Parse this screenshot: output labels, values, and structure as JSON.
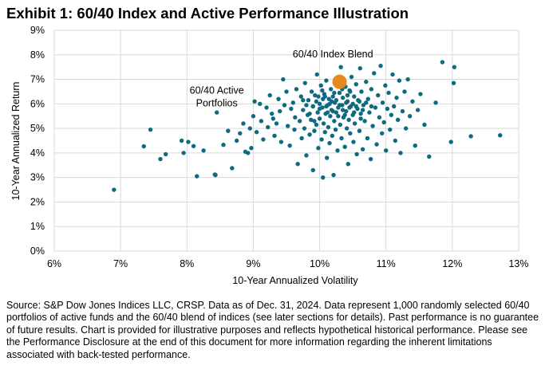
{
  "title": "Exhibit 1: 60/40 Index and Active Performance Illustration",
  "source_note": "Source: S&P Dow Jones Indices LLC, CRSP.  Data as of Dec. 31, 2024.  Data represent 1,000 randomly selected 60/40 portfolios of active funds and the 60/40 blend of indices (see later sections for details).  Past performance is no guarantee of future results.  Chart is provided for illustrative purposes and reflects hypothetical historical performance.  Please see the Performance Disclosure at the end of this document for more information regarding the inherent limitations associated with back-tested performance.",
  "colors": {
    "active": "#0e6a80",
    "index": "#e8891b",
    "grid": "#d9d9d9"
  },
  "chart_data": {
    "type": "scatter",
    "xlabel": "10-Year Annualized Volatility",
    "ylabel": "10-Year Annualized Return",
    "xlim": [
      6,
      13
    ],
    "ylim": [
      0,
      9
    ],
    "x_ticks": [
      "6%",
      "7%",
      "8%",
      "9%",
      "10%",
      "11%",
      "12%",
      "13%"
    ],
    "y_ticks": [
      "0%",
      "1%",
      "2%",
      "3%",
      "4%",
      "5%",
      "6%",
      "7%",
      "8%",
      "9%"
    ],
    "grid": true,
    "annotations": [
      {
        "text_lines": [
          "60/40 Index Blend"
        ],
        "x": 10.2,
        "y": 7.9
      },
      {
        "text_lines": [
          "60/40 Active",
          "Portfolios"
        ],
        "x": 8.45,
        "y": 6.15
      }
    ],
    "series": [
      {
        "color": "#0e6a80",
        "points": [
          [
            6.9,
            2.5
          ],
          [
            7.35,
            4.27
          ],
          [
            7.45,
            4.95
          ],
          [
            7.6,
            3.75
          ],
          [
            7.68,
            3.95
          ],
          [
            7.92,
            4.5
          ],
          [
            7.95,
            4.0
          ],
          [
            8.02,
            4.45
          ],
          [
            8.1,
            4.28
          ],
          [
            8.15,
            3.05
          ],
          [
            8.25,
            4.1
          ],
          [
            8.42,
            3.12
          ],
          [
            8.43,
            3.1
          ],
          [
            8.45,
            5.65
          ],
          [
            8.55,
            4.33
          ],
          [
            8.62,
            4.9
          ],
          [
            8.68,
            3.38
          ],
          [
            8.75,
            4.5
          ],
          [
            8.8,
            4.8
          ],
          [
            8.85,
            5.2
          ],
          [
            8.88,
            4.05
          ],
          [
            8.92,
            4.0
          ],
          [
            8.95,
            5.0
          ],
          [
            8.97,
            4.2
          ],
          [
            9.0,
            5.5
          ],
          [
            9.02,
            6.1
          ],
          [
            9.05,
            4.85
          ],
          [
            9.1,
            6.0
          ],
          [
            9.12,
            5.3
          ],
          [
            9.15,
            4.55
          ],
          [
            9.2,
            5.85
          ],
          [
            9.22,
            5.05
          ],
          [
            9.25,
            6.35
          ],
          [
            9.28,
            5.6
          ],
          [
            9.3,
            5.4
          ],
          [
            9.32,
            4.7
          ],
          [
            9.35,
            5.2
          ],
          [
            9.38,
            6.2
          ],
          [
            9.4,
            5.7
          ],
          [
            9.42,
            4.45
          ],
          [
            9.45,
            7.0
          ],
          [
            9.47,
            5.95
          ],
          [
            9.5,
            6.5
          ],
          [
            9.52,
            5.1
          ],
          [
            9.55,
            4.3
          ],
          [
            9.57,
            5.8
          ],
          [
            9.6,
            6.05
          ],
          [
            9.62,
            4.95
          ],
          [
            9.63,
            5.45
          ],
          [
            9.65,
            6.6
          ],
          [
            9.67,
            3.55
          ],
          [
            9.7,
            5.3
          ],
          [
            9.72,
            6.3
          ],
          [
            9.73,
            4.6
          ],
          [
            9.75,
            5.75
          ],
          [
            9.77,
            5.0
          ],
          [
            9.78,
            6.85
          ],
          [
            9.8,
            3.9
          ],
          [
            9.82,
            5.55
          ],
          [
            9.83,
            6.15
          ],
          [
            9.85,
            4.75
          ],
          [
            9.87,
            5.35
          ],
          [
            9.88,
            6.5
          ],
          [
            9.9,
            3.3
          ],
          [
            9.9,
            5.9
          ],
          [
            9.92,
            4.9
          ],
          [
            9.93,
            6.35
          ],
          [
            9.95,
            5.15
          ],
          [
            9.96,
            7.2
          ],
          [
            9.97,
            5.65
          ],
          [
            9.98,
            4.2
          ],
          [
            10.0,
            6.0
          ],
          [
            10.0,
            5.4
          ],
          [
            10.02,
            6.75
          ],
          [
            10.03,
            4.55
          ],
          [
            10.04,
            5.85
          ],
          [
            10.05,
            3.0
          ],
          [
            10.06,
            5.2
          ],
          [
            10.07,
            6.4
          ],
          [
            10.08,
            4.85
          ],
          [
            10.09,
            5.6
          ],
          [
            10.1,
            6.95
          ],
          [
            10.11,
            3.8
          ],
          [
            10.12,
            5.95
          ],
          [
            10.13,
            5.05
          ],
          [
            10.14,
            6.2
          ],
          [
            10.15,
            4.4
          ],
          [
            10.16,
            5.5
          ],
          [
            10.17,
            6.6
          ],
          [
            10.18,
            5.75
          ],
          [
            10.19,
            4.7
          ],
          [
            10.2,
            6.3
          ],
          [
            10.21,
            3.1
          ],
          [
            10.22,
            5.3
          ],
          [
            10.23,
            6.05
          ],
          [
            10.24,
            4.95
          ],
          [
            10.25,
            5.65
          ],
          [
            10.26,
            6.85
          ],
          [
            10.27,
            4.1
          ],
          [
            10.28,
            5.85
          ],
          [
            10.3,
            6.45
          ],
          [
            10.31,
            5.15
          ],
          [
            10.32,
            7.5
          ],
          [
            10.33,
            4.6
          ],
          [
            10.34,
            5.95
          ],
          [
            10.35,
            6.25
          ],
          [
            10.36,
            5.45
          ],
          [
            10.38,
            4.25
          ],
          [
            10.39,
            6.7
          ],
          [
            10.4,
            5.7
          ],
          [
            10.41,
            5.0
          ],
          [
            10.42,
            6.1
          ],
          [
            10.43,
            3.55
          ],
          [
            10.44,
            5.35
          ],
          [
            10.45,
            6.55
          ],
          [
            10.46,
            4.8
          ],
          [
            10.47,
            5.9
          ],
          [
            10.48,
            7.1
          ],
          [
            10.5,
            5.55
          ],
          [
            10.51,
            4.45
          ],
          [
            10.52,
            6.3
          ],
          [
            10.53,
            5.2
          ],
          [
            10.55,
            6.8
          ],
          [
            10.56,
            3.95
          ],
          [
            10.57,
            5.8
          ],
          [
            10.58,
            6.15
          ],
          [
            10.6,
            4.9
          ],
          [
            10.61,
            7.45
          ],
          [
            10.62,
            5.6
          ],
          [
            10.63,
            6.5
          ],
          [
            10.65,
            4.15
          ],
          [
            10.66,
            5.95
          ],
          [
            10.68,
            5.3
          ],
          [
            10.7,
            6.9
          ],
          [
            10.72,
            4.6
          ],
          [
            10.73,
            6.2
          ],
          [
            10.75,
            5.65
          ],
          [
            10.77,
            3.75
          ],
          [
            10.78,
            6.6
          ],
          [
            10.8,
            5.1
          ],
          [
            10.82,
            7.25
          ],
          [
            10.84,
            5.85
          ],
          [
            10.86,
            4.35
          ],
          [
            10.88,
            6.35
          ],
          [
            10.9,
            5.45
          ],
          [
            10.92,
            7.55
          ],
          [
            10.94,
            4.8
          ],
          [
            10.95,
            6.05
          ],
          [
            10.97,
            5.25
          ],
          [
            10.99,
            6.75
          ],
          [
            11.0,
            4.1
          ],
          [
            11.02,
            5.8
          ],
          [
            11.04,
            6.45
          ],
          [
            11.06,
            4.95
          ],
          [
            11.08,
            5.55
          ],
          [
            11.1,
            7.2
          ],
          [
            11.12,
            5.9
          ],
          [
            11.14,
            4.5
          ],
          [
            11.16,
            6.25
          ],
          [
            11.18,
            5.35
          ],
          [
            11.2,
            6.95
          ],
          [
            11.22,
            4.0
          ],
          [
            11.25,
            5.7
          ],
          [
            11.28,
            6.5
          ],
          [
            11.3,
            5.0
          ],
          [
            11.33,
            7.0
          ],
          [
            11.36,
            5.5
          ],
          [
            11.4,
            6.1
          ],
          [
            11.44,
            4.3
          ],
          [
            11.48,
            5.75
          ],
          [
            11.52,
            6.4
          ],
          [
            11.58,
            5.15
          ],
          [
            11.65,
            3.85
          ],
          [
            11.75,
            6.05
          ],
          [
            11.85,
            7.7
          ],
          [
            11.98,
            4.45
          ],
          [
            12.02,
            6.85
          ],
          [
            12.03,
            7.5
          ],
          [
            12.28,
            4.68
          ],
          [
            12.72,
            4.72
          ],
          [
            9.9,
            5.9
          ],
          [
            9.95,
            6.1
          ],
          [
            10.0,
            5.8
          ],
          [
            10.05,
            6.2
          ],
          [
            10.1,
            5.9
          ],
          [
            10.15,
            6.0
          ],
          [
            10.2,
            5.7
          ],
          [
            10.25,
            6.15
          ],
          [
            10.3,
            5.95
          ],
          [
            10.35,
            5.75
          ],
          [
            10.4,
            6.05
          ],
          [
            10.45,
            5.85
          ],
          [
            10.5,
            6.0
          ],
          [
            10.55,
            5.9
          ],
          [
            10.6,
            6.1
          ],
          [
            10.65,
            5.75
          ],
          [
            9.85,
            5.6
          ],
          [
            10.08,
            6.3
          ],
          [
            10.22,
            6.45
          ],
          [
            10.38,
            5.55
          ],
          [
            10.52,
            5.65
          ],
          [
            10.28,
            5.5
          ],
          [
            10.12,
            5.65
          ],
          [
            9.98,
            6.3
          ],
          [
            10.42,
            6.35
          ],
          [
            10.18,
            6.1
          ],
          [
            9.92,
            5.3
          ],
          [
            10.62,
            5.4
          ],
          [
            10.7,
            6.05
          ],
          [
            10.78,
            5.9
          ],
          [
            9.75,
            6.15
          ],
          [
            9.8,
            5.95
          ],
          [
            10.04,
            6.55
          ],
          [
            10.34,
            6.6
          ],
          [
            10.46,
            6.5
          ]
        ]
      },
      {
        "name": "60/40 Index Blend",
        "color": "#e8891b",
        "points": [
          [
            10.3,
            6.9
          ]
        ]
      }
    ]
  }
}
